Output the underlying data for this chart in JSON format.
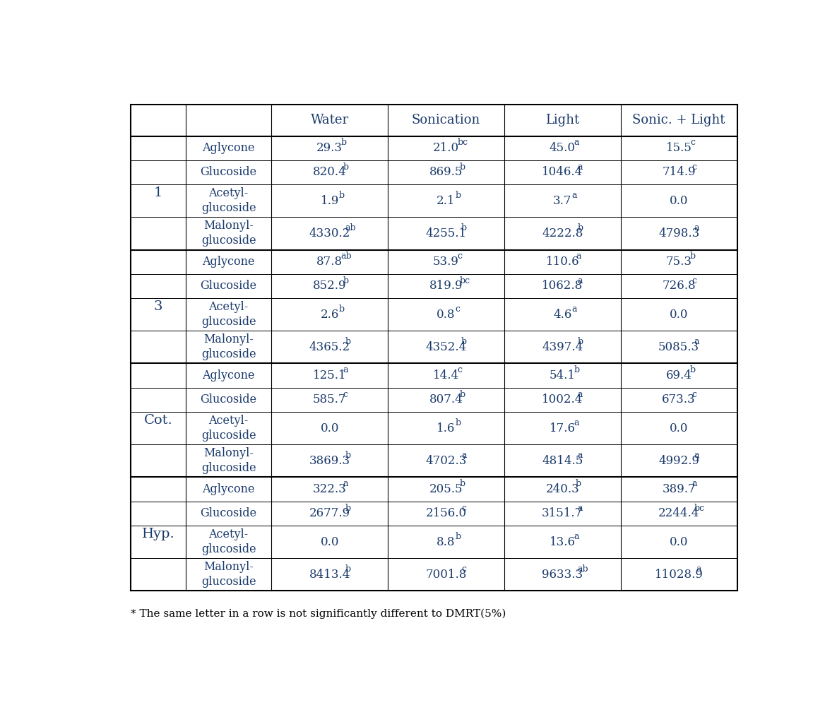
{
  "header_row": [
    "",
    "",
    "Water",
    "Sonication",
    "Light",
    "Sonic. + Light"
  ],
  "groups": [
    {
      "label": "1",
      "rows": [
        {
          "compound": "Aglycone",
          "water": "29.3",
          "water_sup": "b",
          "sonication": "21.0",
          "sonication_sup": "bc",
          "light": "45.0",
          "light_sup": "a",
          "sonic_light": "15.5",
          "sonic_light_sup": "c"
        },
        {
          "compound": "Glucoside",
          "water": "820.4",
          "water_sup": "b",
          "sonication": "869.5",
          "sonication_sup": "b",
          "light": "1046.4",
          "light_sup": "a",
          "sonic_light": "714.9",
          "sonic_light_sup": "c"
        },
        {
          "compound": "Acetyl-\nglucoside",
          "water": "1.9",
          "water_sup": "b",
          "sonication": "2.1",
          "sonication_sup": "b",
          "light": "3.7",
          "light_sup": "a",
          "sonic_light": "0.0",
          "sonic_light_sup": ""
        },
        {
          "compound": "Malonyl-\nglucoside",
          "water": "4330.2",
          "water_sup": "ab",
          "sonication": "4255.1",
          "sonication_sup": "b",
          "light": "4222.8",
          "light_sup": "b",
          "sonic_light": "4798.3",
          "sonic_light_sup": "a"
        }
      ]
    },
    {
      "label": "3",
      "rows": [
        {
          "compound": "Aglycone",
          "water": "87.8",
          "water_sup": "ab",
          "sonication": "53.9",
          "sonication_sup": "c",
          "light": "110.6",
          "light_sup": "a",
          "sonic_light": "75.3",
          "sonic_light_sup": "b"
        },
        {
          "compound": "Glucoside",
          "water": "852.9",
          "water_sup": "b",
          "sonication": "819.9",
          "sonication_sup": "bc",
          "light": "1062.8",
          "light_sup": "a",
          "sonic_light": "726.8",
          "sonic_light_sup": "c"
        },
        {
          "compound": "Acetyl-\nglucoside",
          "water": "2.6",
          "water_sup": "b",
          "sonication": "0.8",
          "sonication_sup": "c",
          "light": "4.6",
          "light_sup": "a",
          "sonic_light": "0.0",
          "sonic_light_sup": ""
        },
        {
          "compound": "Malonyl-\nglucoside",
          "water": "4365.2",
          "water_sup": "b",
          "sonication": "4352.4",
          "sonication_sup": "b",
          "light": "4397.4",
          "light_sup": "b",
          "sonic_light": "5085.3",
          "sonic_light_sup": "a"
        }
      ]
    },
    {
      "label": "Cot.",
      "rows": [
        {
          "compound": "Aglycone",
          "water": "125.1",
          "water_sup": "a",
          "sonication": "14.4",
          "sonication_sup": "c",
          "light": "54.1",
          "light_sup": "b",
          "sonic_light": "69.4",
          "sonic_light_sup": "b"
        },
        {
          "compound": "Glucoside",
          "water": "585.7",
          "water_sup": "c",
          "sonication": "807.4",
          "sonication_sup": "b",
          "light": "1002.4",
          "light_sup": "a",
          "sonic_light": "673.3",
          "sonic_light_sup": "c"
        },
        {
          "compound": "Acetyl-\nglucoside",
          "water": "0.0",
          "water_sup": "",
          "sonication": "1.6",
          "sonication_sup": "b",
          "light": "17.6",
          "light_sup": "a",
          "sonic_light": "0.0",
          "sonic_light_sup": ""
        },
        {
          "compound": "Malonyl-\nglucoside",
          "water": "3869.3",
          "water_sup": "b",
          "sonication": "4702.3",
          "sonication_sup": "a",
          "light": "4814.5",
          "light_sup": "a",
          "sonic_light": "4992.9",
          "sonic_light_sup": "a"
        }
      ]
    },
    {
      "label": "Hyp.",
      "rows": [
        {
          "compound": "Aglycone",
          "water": "322.3",
          "water_sup": "a",
          "sonication": "205.5",
          "sonication_sup": "b",
          "light": "240.3",
          "light_sup": "b",
          "sonic_light": "389.7",
          "sonic_light_sup": "a"
        },
        {
          "compound": "Glucoside",
          "water": "2677.9",
          "water_sup": "b",
          "sonication": "2156.0",
          "sonication_sup": "c",
          "light": "3151.7",
          "light_sup": "a",
          "sonic_light": "2244.4",
          "sonic_light_sup": "bc"
        },
        {
          "compound": "Acetyl-\nglucoside",
          "water": "0.0",
          "water_sup": "",
          "sonication": "8.8",
          "sonication_sup": "b",
          "light": "13.6",
          "light_sup": "a",
          "sonic_light": "0.0",
          "sonic_light_sup": ""
        },
        {
          "compound": "Malonyl-\nglucoside",
          "water": "8413.4",
          "water_sup": "b",
          "sonication": "7001.8",
          "sonication_sup": "c",
          "light": "9633.3",
          "light_sup": "ab",
          "sonic_light": "11028.9",
          "sonic_light_sup": "a"
        }
      ]
    }
  ],
  "footnote": "* The same letter in a row is not significantly different to DMRT(5%)",
  "text_color": "#1a3a6b",
  "line_color": "#000000",
  "bg_color": "#ffffff",
  "col_proportions": [
    0.09,
    0.14,
    0.19,
    0.19,
    0.19,
    0.19
  ],
  "font_size_header": 13,
  "font_size_data": 12,
  "font_size_sup": 9,
  "font_size_group": 14,
  "font_size_compound": 11.5,
  "font_size_footnote": 11
}
